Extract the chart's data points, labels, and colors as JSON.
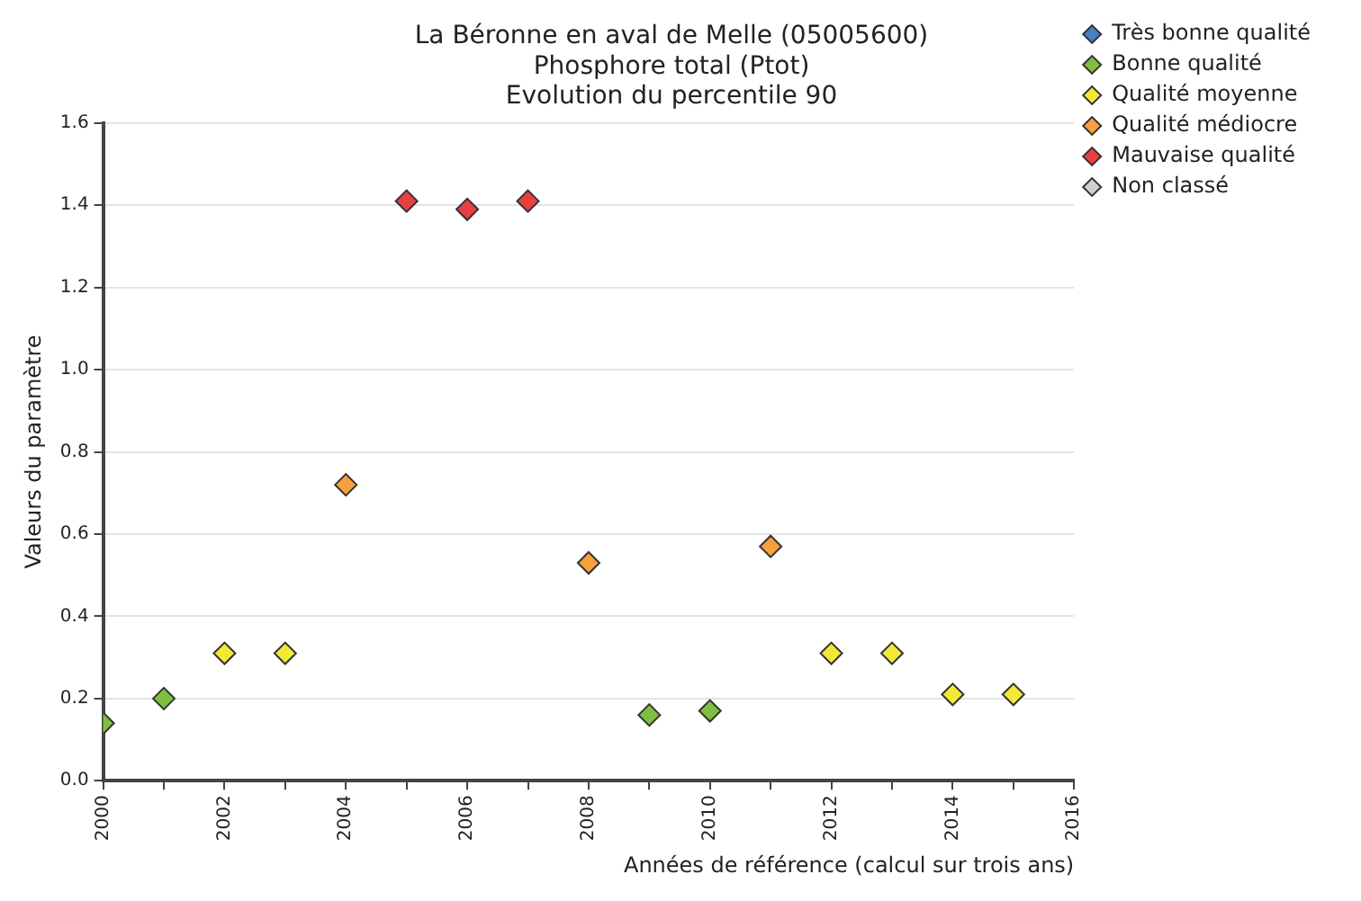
{
  "chart_data": {
    "type": "scatter",
    "title": "La Béronne en aval de Melle (05005600)",
    "subtitle": "Phosphore total (Ptot)\nEvolution du percentile 90",
    "xlabel": "Années de référence (calcul sur trois ans)",
    "ylabel": "Valeurs du paramètre",
    "xlim": [
      2000,
      2016
    ],
    "xticks": [
      2000,
      {
        "value": 2001,
        "label": null
      },
      2002,
      {
        "value": 2003,
        "label": null
      },
      2004,
      {
        "value": 2005,
        "label": null
      },
      2006,
      {
        "value": 2007,
        "label": null
      },
      2008,
      {
        "value": 2009,
        "label": null
      },
      2010,
      {
        "value": 2011,
        "label": null
      },
      2012,
      {
        "value": 2013,
        "label": null
      },
      2014,
      {
        "value": 2015,
        "label": null
      },
      2016
    ],
    "ylim": [
      0,
      1.6
    ],
    "yticks": [
      {
        "value": 0,
        "label": "0.0"
      },
      0.2,
      0.4,
      0.6,
      0.8,
      {
        "value": 1,
        "label": "1.0"
      },
      1.2,
      1.4,
      1.6
    ],
    "grid": "y",
    "legend": "top right",
    "marker": "diamond",
    "series": [
      {
        "name": "Très bonne qualité",
        "color": "#4a7fc1"
      },
      {
        "name": "Bonne qualité",
        "color": "#7fbf3f",
        "x": [
          2000,
          2001,
          2009,
          2010
        ],
        "values": [
          0.14,
          0.2,
          0.16,
          0.17
        ]
      },
      {
        "name": "Qualité moyenne",
        "color": "#f2e935",
        "x": [
          2002,
          2003,
          2012,
          2013,
          2014,
          2015
        ],
        "values": [
          0.31,
          0.31,
          0.31,
          0.31,
          0.21,
          0.21
        ]
      },
      {
        "name": "Qualité médiocre",
        "color": "#f7a03c",
        "x": [
          2004,
          2008,
          2011
        ],
        "values": [
          0.72,
          0.53,
          0.57
        ]
      },
      {
        "name": "Mauvaise qualité",
        "color": "#e84040",
        "x": [
          2005,
          2006,
          2007
        ],
        "values": [
          1.41,
          1.39,
          1.41
        ]
      },
      {
        "name": "Non classé",
        "color": "#d0d0d0"
      }
    ]
  }
}
